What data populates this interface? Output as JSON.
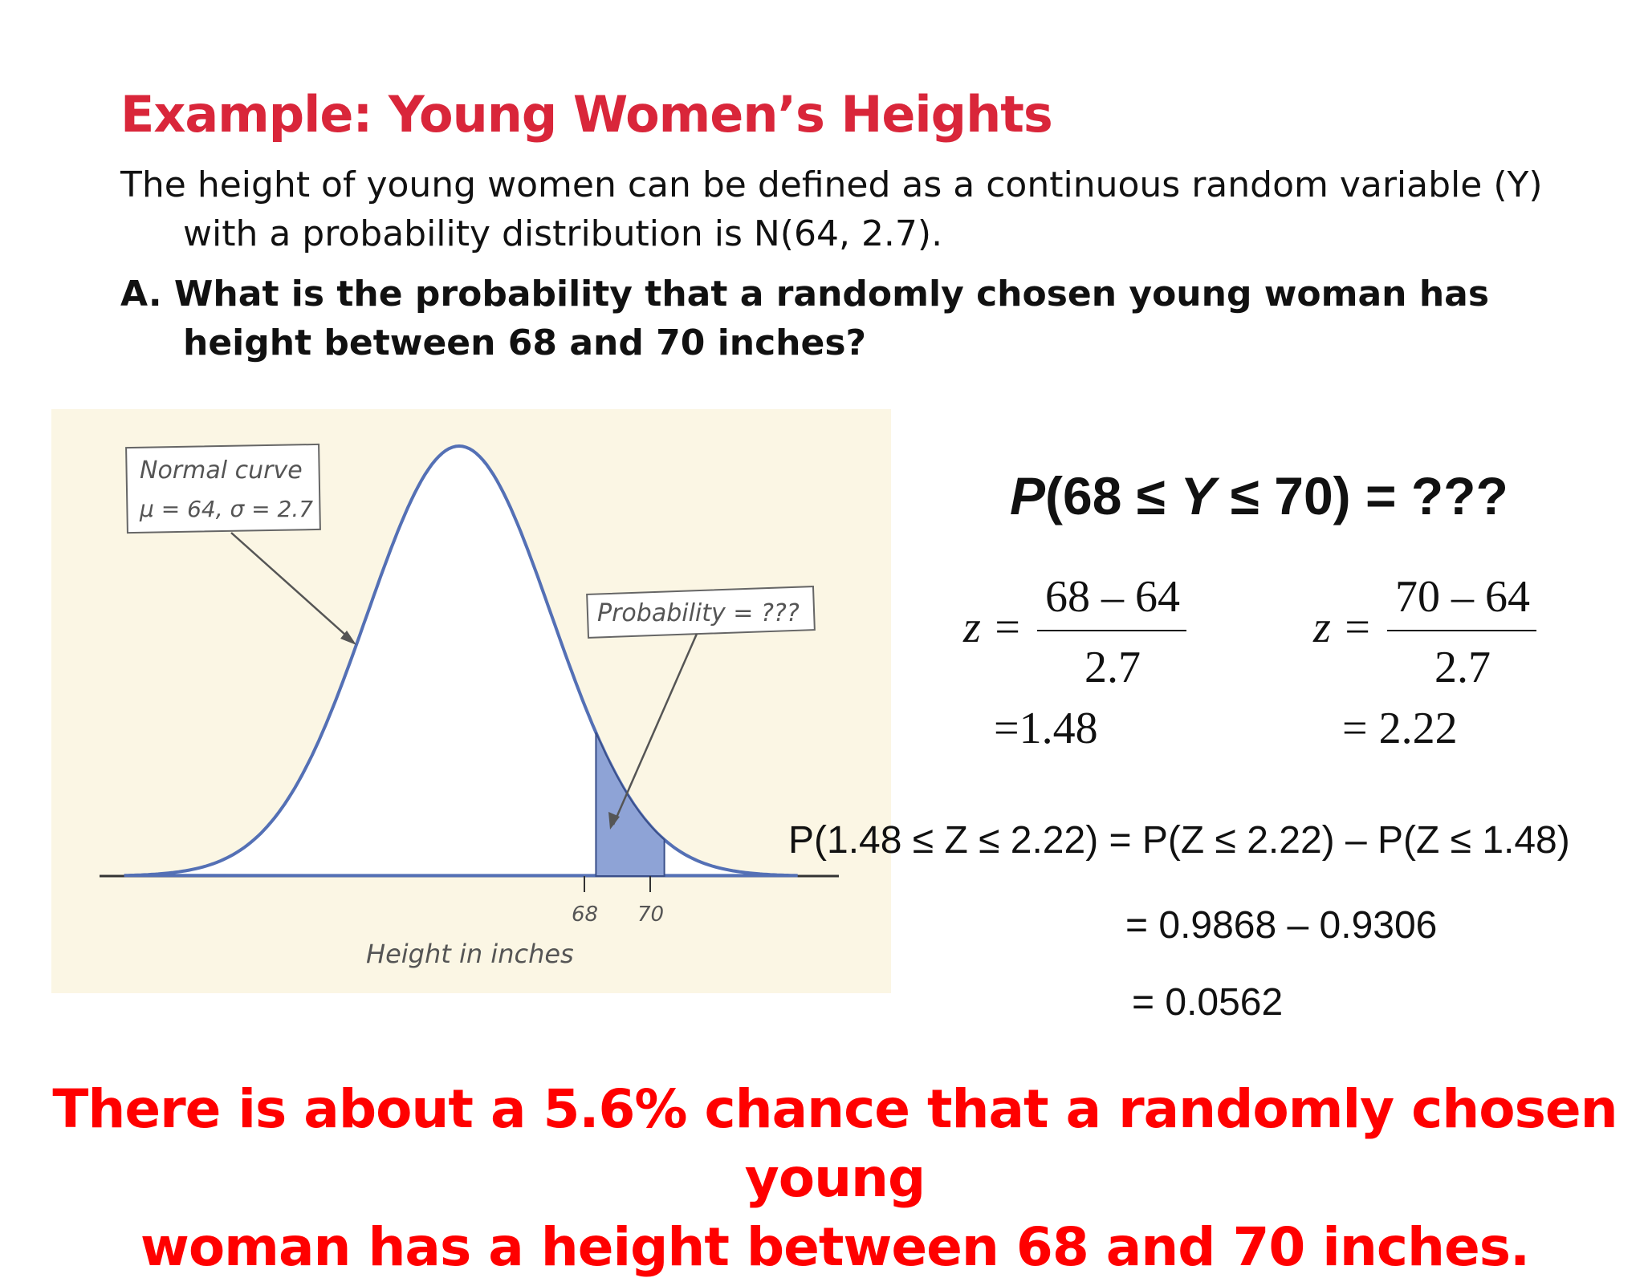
{
  "slide": {
    "title": "Example: Young Women’s Heights",
    "intro": "The height of young women can be defined as a continuous random variable (Y) with a probability distribution is N(64, 2.7).",
    "question": "A. What is the probability that a randomly chosen young woman has height between 68 and 70 inches?",
    "conclusion_line1": "There is about a 5.6% chance that a randomly chosen young",
    "conclusion_line2": "woman has a height between 68 and 70 inches."
  },
  "figure": {
    "curve_label_line1": "Normal curve",
    "curve_label_line2": "μ = 64, σ = 2.7",
    "prob_label": "Probability = ???",
    "tick_68": "68",
    "tick_70": "70",
    "axis_label": "Height in inches",
    "curve_color": "#5470b5",
    "shade_color": "#8ea3d6",
    "background": "#fbf6e4"
  },
  "equations": {
    "target_p": "P",
    "target_rest1": "(68 ≤ ",
    "target_y": "Y",
    "target_rest2": " ≤ 70) = ???",
    "z1_var": "z =",
    "z1_num": "68 – 64",
    "z1_den": "2.7",
    "z1_result": "=1.48",
    "z2_var": "z =",
    "z2_num": "70 – 64",
    "z2_den": "2.7",
    "z2_result": "= 2.22",
    "prob_line": "P(1.48 ≤ Z ≤ 2.22) = P(Z ≤ 2.22) – P(Z ≤ 1.48)",
    "diff_line": "= 0.9868 – 0.9306",
    "result_line": "= 0.0562"
  }
}
